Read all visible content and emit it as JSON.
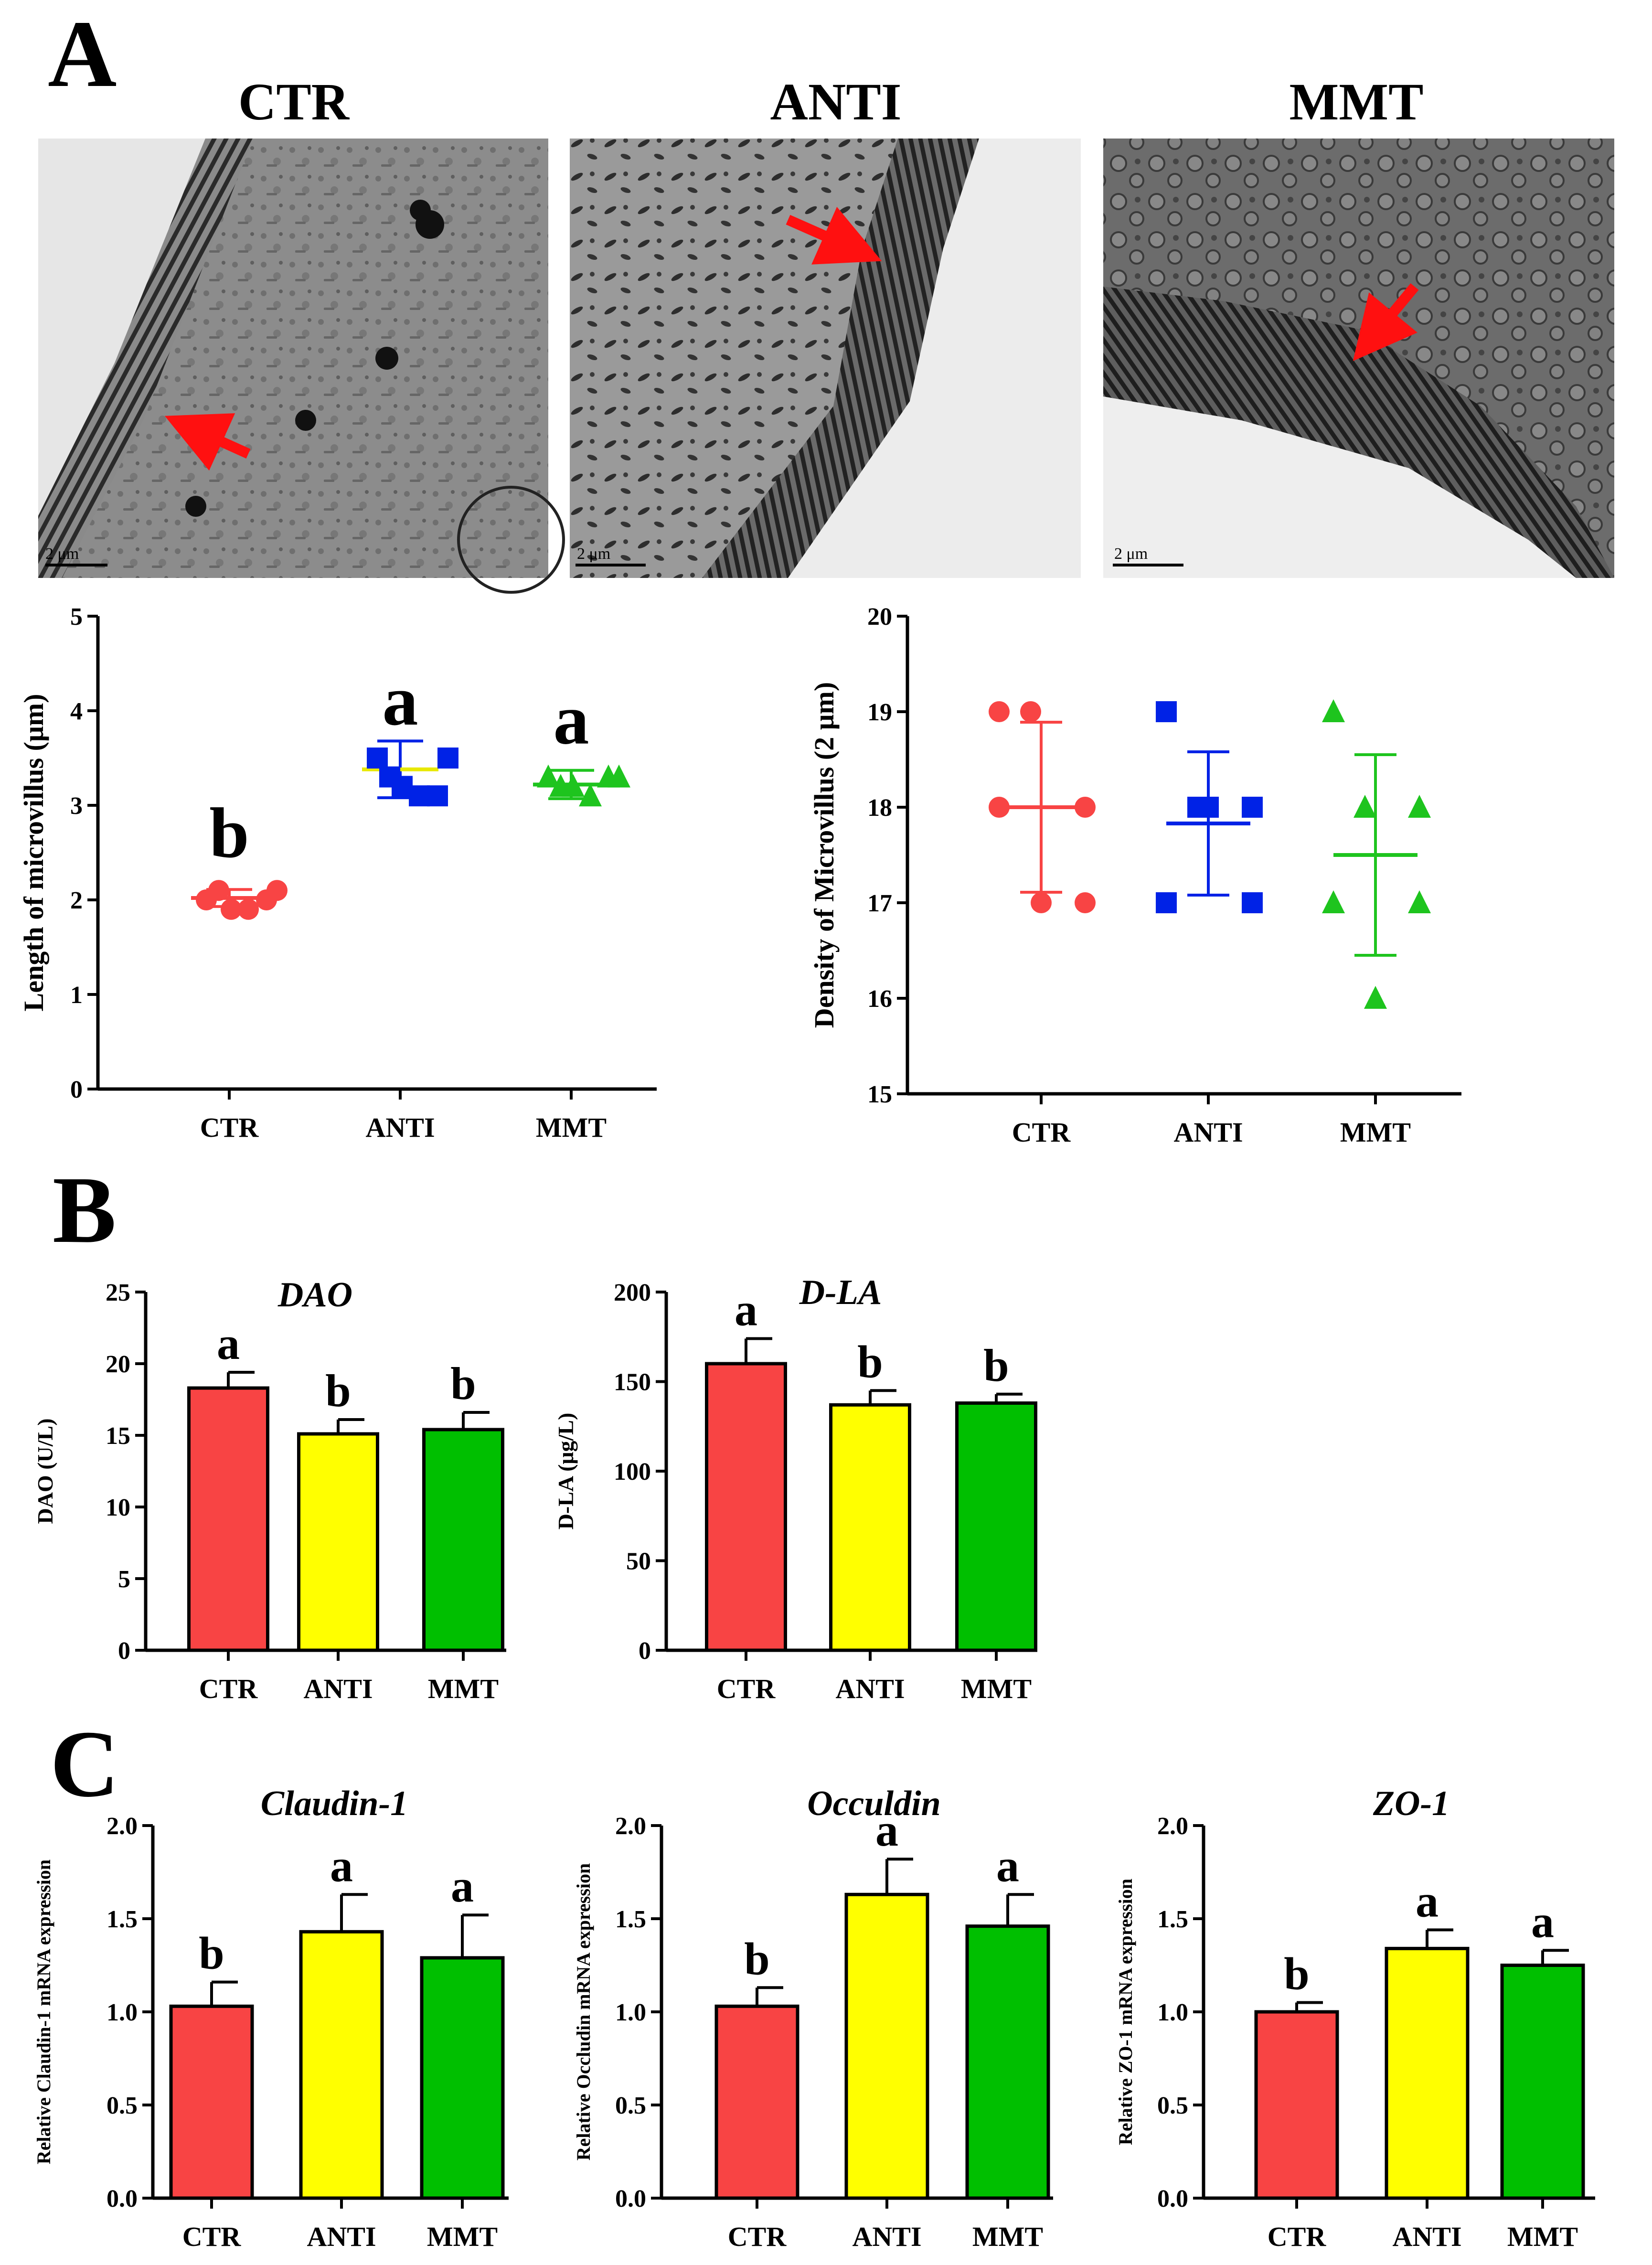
{
  "panels": {
    "a": "A",
    "b": "B",
    "c": "C"
  },
  "micrographs": [
    {
      "title": "CTR",
      "scale_bar": "2 μm"
    },
    {
      "title": "ANTI",
      "scale_bar": "2 μm"
    },
    {
      "title": "MMT",
      "scale_bar": "2 μm"
    }
  ],
  "colors": {
    "CTR": "#f84444",
    "ANTI": "#ffff00",
    "MMT": "#00bf00",
    "ANTI_dot": "#0022e6",
    "MMT_dot": "#1ec41e"
  },
  "chart_data": [
    {
      "id": "length",
      "type": "scatter",
      "title": "",
      "ylabel": "Length of microvillus (μm)",
      "categories": [
        "CTR",
        "ANTI",
        "MMT"
      ],
      "ylim": [
        0,
        5
      ],
      "yticks": [
        0,
        1,
        2,
        3,
        4,
        5
      ],
      "series": [
        {
          "name": "CTR",
          "points": [
            2.0,
            2.1,
            1.9,
            1.9,
            2.0,
            2.1
          ],
          "mean": 2.02,
          "sd": 0.09,
          "letter": "b"
        },
        {
          "name": "ANTI",
          "points": [
            3.5,
            3.3,
            3.2,
            3.1,
            3.1,
            3.5
          ],
          "mean": 3.38,
          "sd": 0.3,
          "letter": "a"
        },
        {
          "name": "MMT",
          "points": [
            3.3,
            3.2,
            3.2,
            3.1,
            3.3,
            3.3
          ],
          "mean": 3.22,
          "sd": 0.15,
          "letter": "a"
        }
      ]
    },
    {
      "id": "density",
      "type": "scatter",
      "title": "",
      "ylabel": "Density of Microvillus (2 μm)",
      "categories": [
        "CTR",
        "ANTI",
        "MMT"
      ],
      "ylim": [
        15,
        20
      ],
      "yticks": [
        15,
        16,
        17,
        18,
        19,
        20
      ],
      "series": [
        {
          "name": "CTR",
          "points": [
            19,
            19,
            18,
            18,
            17,
            17
          ],
          "mean": 18.0,
          "sd": 0.89
        },
        {
          "name": "ANTI",
          "points": [
            19,
            18,
            18,
            17,
            17,
            18
          ],
          "mean": 17.83,
          "sd": 0.75
        },
        {
          "name": "MMT",
          "points": [
            19,
            18,
            18,
            17,
            17,
            16
          ],
          "mean": 17.5,
          "sd": 1.05
        }
      ]
    },
    {
      "id": "dao",
      "type": "bar",
      "title": "DAO",
      "ylabel": "DAO  (U/L)",
      "categories": [
        "CTR",
        "ANTI",
        "MMT"
      ],
      "ylim": [
        0,
        25
      ],
      "yticks": [
        0,
        5,
        10,
        15,
        20,
        25
      ],
      "values": [
        18.3,
        15.1,
        15.4
      ],
      "errors": [
        1.1,
        1.0,
        1.2
      ],
      "letters": [
        "a",
        "b",
        "b"
      ]
    },
    {
      "id": "dla",
      "type": "bar",
      "title": "D-LA",
      "ylabel": "D-LA  (μg/L)",
      "categories": [
        "CTR",
        "ANTI",
        "MMT"
      ],
      "ylim": [
        0,
        200
      ],
      "yticks": [
        0,
        50,
        100,
        150,
        200
      ],
      "values": [
        160,
        137,
        138
      ],
      "errors": [
        14,
        8,
        5
      ],
      "letters": [
        "a",
        "b",
        "b"
      ]
    },
    {
      "id": "claudin",
      "type": "bar",
      "title": "Claudin-1",
      "ylabel": "Relative Claudin-1 mRNA expression",
      "categories": [
        "CTR",
        "ANTI",
        "MMT"
      ],
      "ylim": [
        0,
        2
      ],
      "yticks": [
        "0.0",
        "0.5",
        "1.0",
        "1.5",
        "2.0"
      ],
      "values": [
        1.03,
        1.43,
        1.29
      ],
      "errors": [
        0.13,
        0.2,
        0.23
      ],
      "letters": [
        "b",
        "a",
        "a"
      ]
    },
    {
      "id": "occludin",
      "type": "bar",
      "title": "Occuldin",
      "ylabel": "Relative Occludin mRNA expression",
      "categories": [
        "CTR",
        "ANTI",
        "MMT"
      ],
      "ylim": [
        0,
        2
      ],
      "yticks": [
        "0.0",
        "0.5",
        "1.0",
        "1.5",
        "2.0"
      ],
      "values": [
        1.03,
        1.63,
        1.46
      ],
      "errors": [
        0.1,
        0.19,
        0.17
      ],
      "letters": [
        "b",
        "a",
        "a"
      ]
    },
    {
      "id": "zo1",
      "type": "bar",
      "title": "ZO-1",
      "ylabel": "Relative ZO-1 mRNA expression",
      "categories": [
        "CTR",
        "ANTI",
        "MMT"
      ],
      "ylim": [
        0,
        2
      ],
      "yticks": [
        "0.0",
        "0.5",
        "1.0",
        "1.5",
        "2.0"
      ],
      "values": [
        1.0,
        1.34,
        1.25
      ],
      "errors": [
        0.05,
        0.1,
        0.08
      ],
      "letters": [
        "b",
        "a",
        "a"
      ]
    }
  ]
}
